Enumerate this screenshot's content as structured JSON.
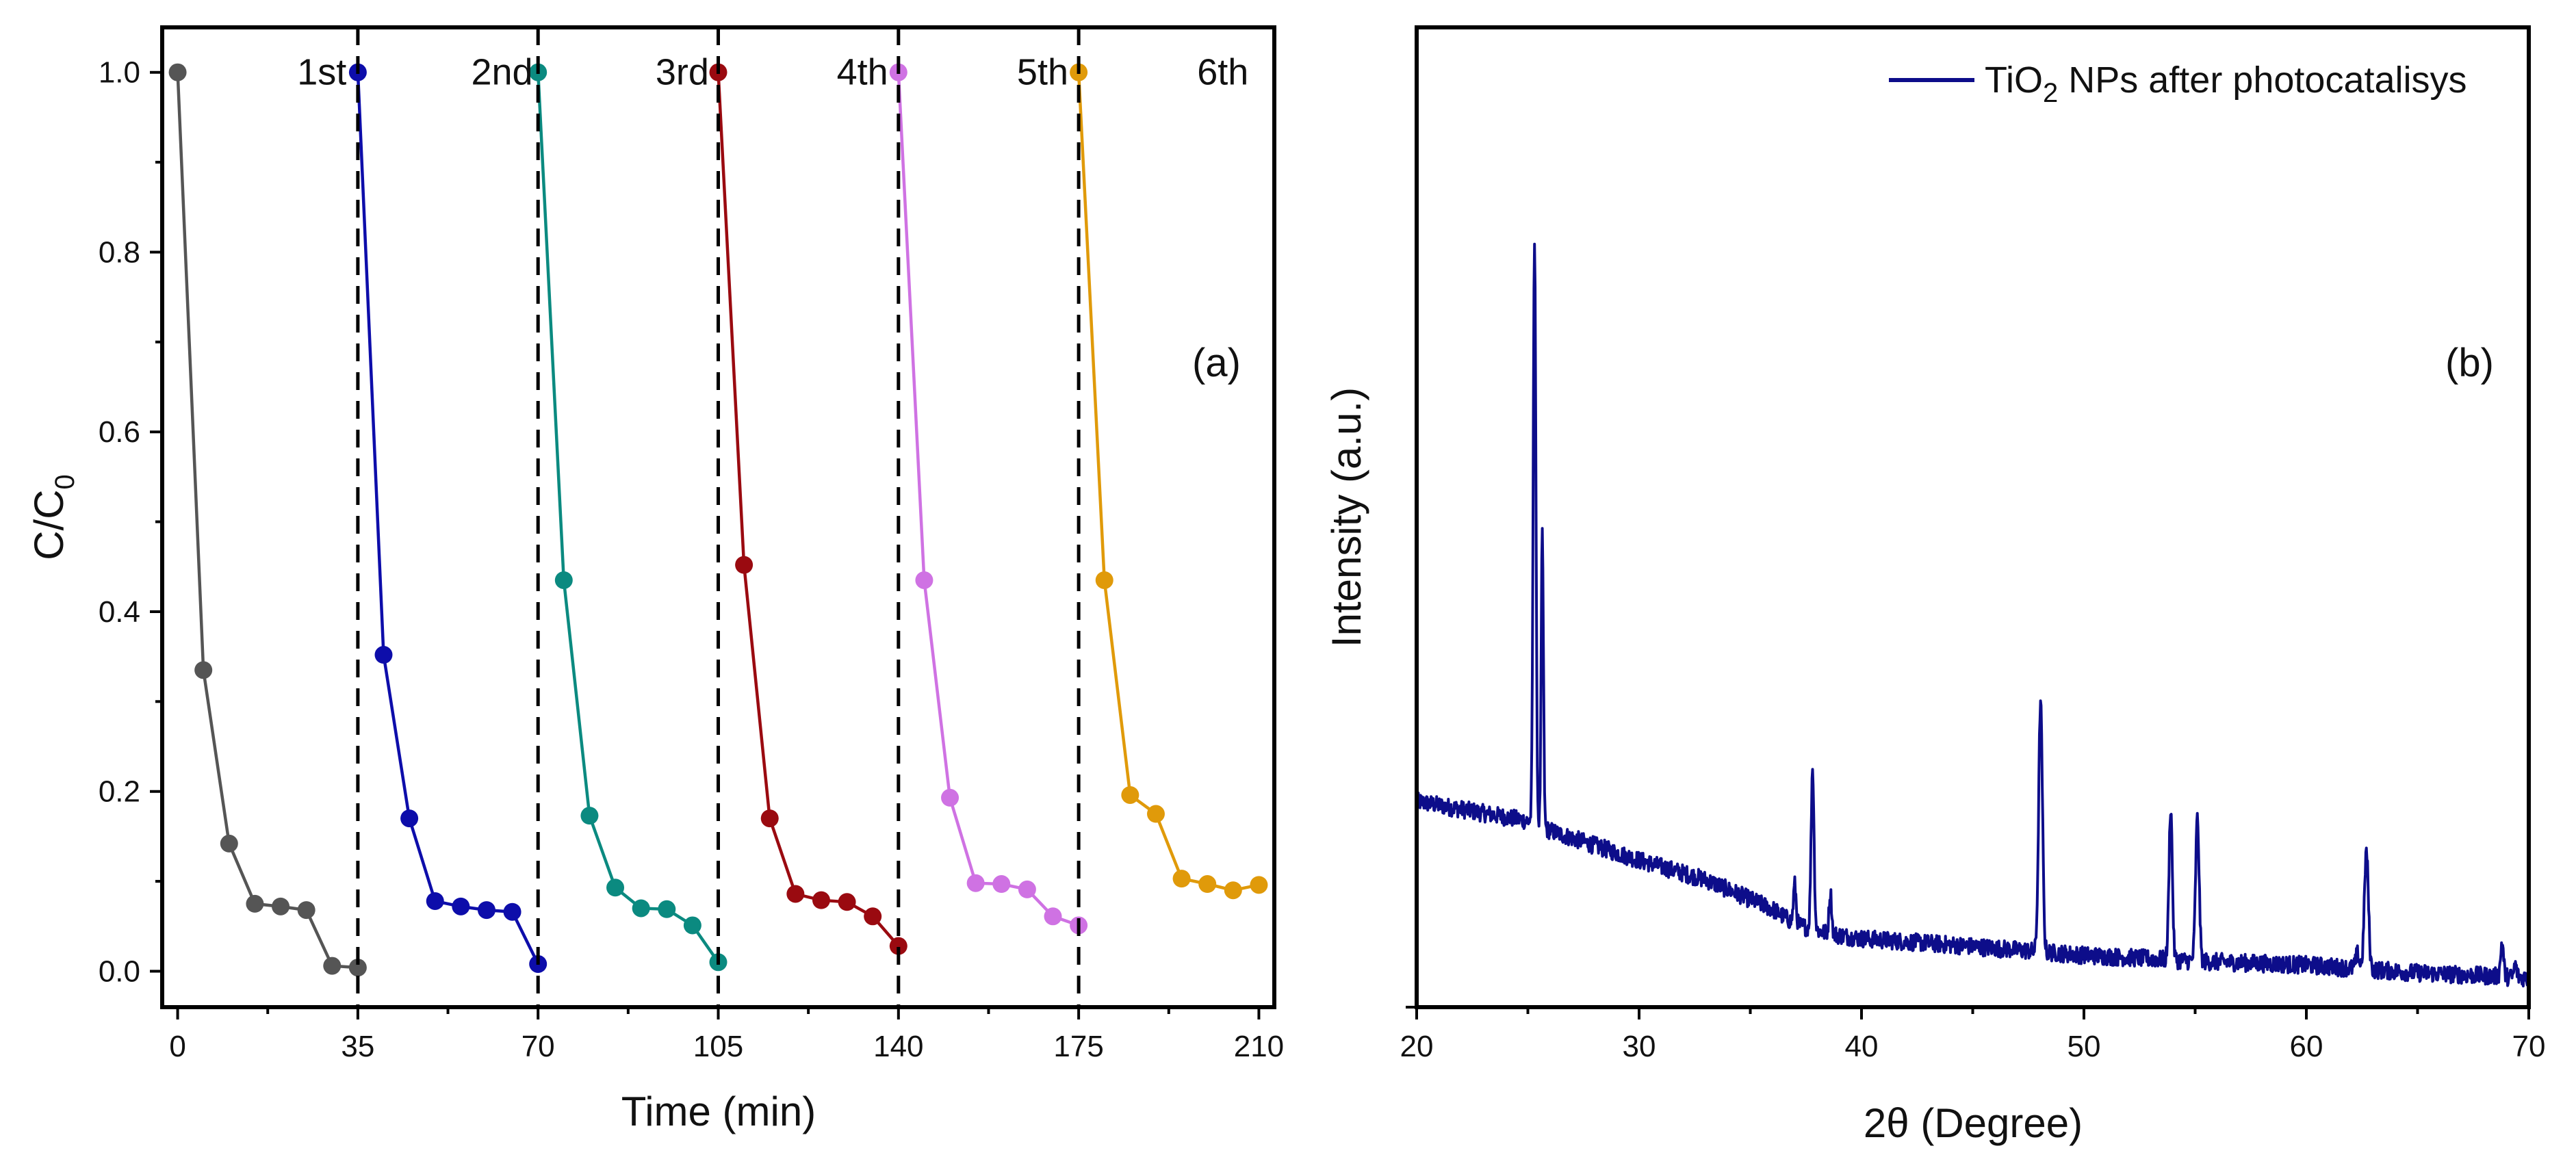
{
  "chart_data": [
    {
      "panel": "a",
      "type": "line",
      "panel_label": "(a)",
      "xlabel": "Time (min)",
      "ylabel": "C/C",
      "ylabel_sub": "0",
      "xlim": [
        -3,
        213
      ],
      "ylim": [
        -0.04,
        1.05
      ],
      "xticks": [
        0,
        35,
        70,
        105,
        140,
        175,
        210
      ],
      "yticks": [
        "0.0",
        "0.2",
        "0.4",
        "0.6",
        "0.8",
        "1.0"
      ],
      "grid": false,
      "markers": "circle",
      "dividers": [
        35,
        70,
        105,
        140,
        175
      ],
      "series": [
        {
          "name": "0",
          "label": "",
          "color": "#555555",
          "x": [
            0,
            5,
            10,
            15,
            20,
            25,
            30,
            35
          ],
          "y": [
            1.0,
            0.335,
            0.142,
            0.075,
            0.072,
            0.068,
            0.006,
            0.004
          ]
        },
        {
          "name": "1st",
          "label": "1st",
          "color": "#0d0daa",
          "x": [
            35,
            40,
            45,
            50,
            55,
            60,
            65,
            70
          ],
          "y": [
            1.0,
            0.352,
            0.17,
            0.078,
            0.072,
            0.068,
            0.066,
            0.008
          ]
        },
        {
          "name": "2nd",
          "label": "2nd",
          "color": "#0b8a80",
          "x": [
            70,
            75,
            80,
            85,
            90,
            95,
            100,
            105
          ],
          "y": [
            1.0,
            0.435,
            0.173,
            0.093,
            0.07,
            0.069,
            0.051,
            0.01
          ]
        },
        {
          "name": "3rd",
          "label": "3rd",
          "color": "#9a0a10",
          "x": [
            105,
            110,
            115,
            120,
            125,
            130,
            135,
            140
          ],
          "y": [
            1.0,
            0.452,
            0.17,
            0.086,
            0.079,
            0.077,
            0.061,
            0.028
          ]
        },
        {
          "name": "4th",
          "label": "4th",
          "color": "#cf72e3",
          "x": [
            140,
            145,
            150,
            155,
            160,
            165,
            170,
            175
          ],
          "y": [
            1.0,
            0.435,
            0.193,
            0.098,
            0.097,
            0.091,
            0.061,
            0.051
          ]
        },
        {
          "name": "5th",
          "label": "5th",
          "color": "#e09a0a",
          "x": [
            175,
            180,
            185,
            190,
            195,
            200,
            205,
            210
          ],
          "y": [
            1.0,
            0.435,
            0.196,
            0.175,
            0.103,
            0.097,
            0.09,
            0.096
          ]
        }
      ],
      "cycle_labels": [
        {
          "text": "1st",
          "x": 28,
          "y": 1.0
        },
        {
          "text": "2nd",
          "x": 63,
          "y": 1.0
        },
        {
          "text": "3rd",
          "x": 98,
          "y": 1.0
        },
        {
          "text": "4th",
          "x": 133,
          "y": 1.0
        },
        {
          "text": "5th",
          "x": 168,
          "y": 1.0
        },
        {
          "text": "6th",
          "x": 203,
          "y": 1.0
        }
      ]
    },
    {
      "panel": "b",
      "type": "line",
      "panel_label": "(b)",
      "xlabel": "2θ (Degree)",
      "ylabel": "Intensity (a.u.)",
      "xlim": [
        20,
        70
      ],
      "ylim": [
        0,
        1
      ],
      "xticks": [
        20,
        30,
        40,
        50,
        60,
        70
      ],
      "yticks": [],
      "grid": false,
      "legend": {
        "position": "top-right",
        "text_main": "TiO",
        "text_sub": "2",
        "text_rest": " NPs after photocatalisys"
      },
      "series": [
        {
          "name": "TiO2 NPs after photocatalisys",
          "color": "#0d0d8a",
          "background": [
            [
              20,
              0.21
            ],
            [
              25,
              0.19
            ],
            [
              26,
              0.18
            ],
            [
              28,
              0.165
            ],
            [
              30,
              0.15
            ],
            [
              33,
              0.13
            ],
            [
              36,
              0.1
            ],
            [
              37,
              0.085
            ],
            [
              38.5,
              0.075
            ],
            [
              40,
              0.07
            ],
            [
              45,
              0.062
            ],
            [
              50,
              0.053
            ],
            [
              55,
              0.047
            ],
            [
              60,
              0.043
            ],
            [
              65,
              0.035
            ],
            [
              70,
              0.03
            ]
          ],
          "peaks": [
            {
              "x": 25.3,
              "h": 0.6,
              "w": 0.12
            },
            {
              "x": 25.65,
              "h": 0.3,
              "w": 0.1
            },
            {
              "x": 37.0,
              "h": 0.04,
              "w": 0.12
            },
            {
              "x": 37.8,
              "h": 0.165,
              "w": 0.13
            },
            {
              "x": 38.6,
              "h": 0.042,
              "w": 0.12
            },
            {
              "x": 48.05,
              "h": 0.255,
              "w": 0.17
            },
            {
              "x": 53.9,
              "h": 0.155,
              "w": 0.15
            },
            {
              "x": 55.1,
              "h": 0.145,
              "w": 0.16
            },
            {
              "x": 62.3,
              "h": 0.015,
              "w": 0.15
            },
            {
              "x": 62.7,
              "h": 0.12,
              "w": 0.18
            },
            {
              "x": 68.8,
              "h": 0.035,
              "w": 0.13
            },
            {
              "x": 69.4,
              "h": 0.012,
              "w": 0.12
            }
          ],
          "noise": 0.009
        }
      ]
    }
  ]
}
